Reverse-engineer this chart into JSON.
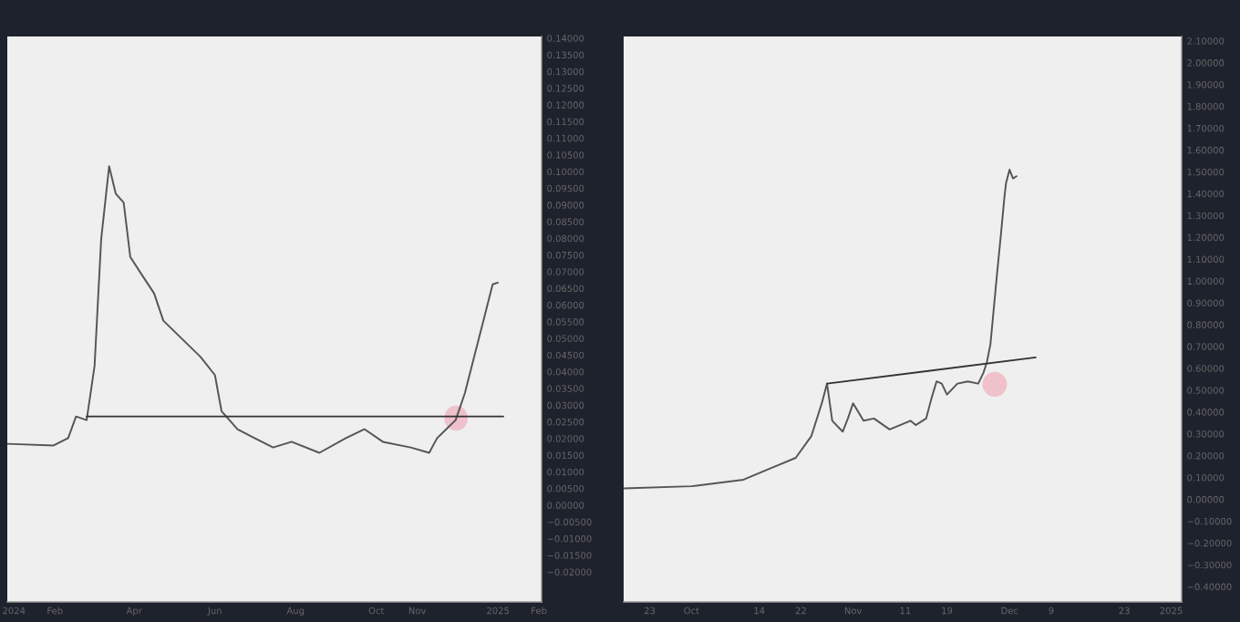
{
  "chart_data": [
    {
      "type": "line",
      "legend": false,
      "grid": false,
      "xlim": [
        "2023-12-27",
        "2025-02-03"
      ],
      "xticks": [
        {
          "value": "2024-01-01",
          "label": "2024"
        },
        {
          "value": "2024-02-01",
          "label": "Feb"
        },
        {
          "value": "2024-04-01",
          "label": "Apr"
        },
        {
          "value": "2024-06-01",
          "label": "Jun"
        },
        {
          "value": "2024-08-01",
          "label": "Aug"
        },
        {
          "value": "2024-10-01",
          "label": "Oct"
        },
        {
          "value": "2024-11-01",
          "label": "Nov"
        },
        {
          "value": "2025-01-01",
          "label": "2025"
        },
        {
          "value": "2025-02-01",
          "label": "Feb"
        }
      ],
      "ylim": [
        -0.029,
        0.1405
      ],
      "yticks": [
        {
          "value": 0.14,
          "label": "0.14000"
        },
        {
          "value": 0.135,
          "label": "0.13500"
        },
        {
          "value": 0.13,
          "label": "0.13000"
        },
        {
          "value": 0.125,
          "label": "0.12500"
        },
        {
          "value": 0.12,
          "label": "0.12000"
        },
        {
          "value": 0.115,
          "label": "0.11500"
        },
        {
          "value": 0.11,
          "label": "0.11000"
        },
        {
          "value": 0.105,
          "label": "0.10500"
        },
        {
          "value": 0.1,
          "label": "0.10000"
        },
        {
          "value": 0.095,
          "label": "0.09500"
        },
        {
          "value": 0.09,
          "label": "0.09000"
        },
        {
          "value": 0.085,
          "label": "0.08500"
        },
        {
          "value": 0.08,
          "label": "0.08000"
        },
        {
          "value": 0.075,
          "label": "0.07500"
        },
        {
          "value": 0.07,
          "label": "0.07000"
        },
        {
          "value": 0.065,
          "label": "0.06500"
        },
        {
          "value": 0.06,
          "label": "0.06000"
        },
        {
          "value": 0.055,
          "label": "0.05500"
        },
        {
          "value": 0.05,
          "label": "0.05000"
        },
        {
          "value": 0.045,
          "label": "0.04500"
        },
        {
          "value": 0.04,
          "label": "0.04000"
        },
        {
          "value": 0.035,
          "label": "0.03500"
        },
        {
          "value": 0.03,
          "label": "0.03000"
        },
        {
          "value": 0.025,
          "label": "0.02500"
        },
        {
          "value": 0.02,
          "label": "0.02000"
        },
        {
          "value": 0.015,
          "label": "0.01500"
        },
        {
          "value": 0.01,
          "label": "0.01000"
        },
        {
          "value": 0.005,
          "label": "0.00500"
        },
        {
          "value": 0,
          "label": "0.00000"
        },
        {
          "value": -0.005,
          "label": "−0.00500"
        },
        {
          "value": -0.01,
          "label": "−0.01000"
        },
        {
          "value": -0.015,
          "label": "−0.01500"
        },
        {
          "value": -0.02,
          "label": "−0.02000"
        }
      ],
      "series": [
        {
          "color": "#555555",
          "x": [
            "2023-12-27",
            "2024-01-31",
            "2024-02-11",
            "2024-02-17",
            "2024-02-25",
            "2024-03-02",
            "2024-03-07",
            "2024-03-13",
            "2024-03-18",
            "2024-03-24",
            "2024-03-29",
            "2024-04-07",
            "2024-04-16",
            "2024-04-23",
            "2024-05-07",
            "2024-05-21",
            "2024-06-01",
            "2024-06-06",
            "2024-06-18",
            "2024-07-01",
            "2024-07-15",
            "2024-07-29",
            "2024-08-19",
            "2024-09-08",
            "2024-09-22",
            "2024-10-06",
            "2024-10-27",
            "2024-11-10",
            "2024-11-16",
            "2024-11-23",
            "2024-11-30",
            "2024-12-07",
            "2024-12-14",
            "2024-12-21",
            "2024-12-28",
            "2025-01-01"
          ],
          "values": [
            0.0184,
            0.0179,
            0.0201,
            0.0266,
            0.0255,
            0.0418,
            0.0798,
            0.1016,
            0.0934,
            0.0907,
            0.0744,
            0.0689,
            0.0635,
            0.0553,
            0.0499,
            0.0445,
            0.039,
            0.0282,
            0.0228,
            0.0201,
            0.0173,
            0.019,
            0.0157,
            0.0201,
            0.0228,
            0.019,
            0.0173,
            0.0157,
            0.0201,
            0.0228,
            0.0255,
            0.0336,
            0.0445,
            0.0553,
            0.0662,
            0.0667
          ]
        },
        {
          "color": "#333333",
          "x": [
            "2024-02-25",
            "2025-01-05"
          ],
          "values": [
            0.0266,
            0.0266
          ]
        }
      ]
    },
    {
      "type": "line",
      "legend": false,
      "grid": false,
      "xlim": [
        "2024-09-18",
        "2025-01-03"
      ],
      "xticks": [
        {
          "value": "2024-09-23",
          "label": "23"
        },
        {
          "value": "2024-10-01",
          "label": "Oct"
        },
        {
          "value": "2024-10-14",
          "label": "14"
        },
        {
          "value": "2024-10-22",
          "label": "22"
        },
        {
          "value": "2024-11-01",
          "label": "Nov"
        },
        {
          "value": "2024-11-11",
          "label": "11"
        },
        {
          "value": "2024-11-19",
          "label": "19"
        },
        {
          "value": "2024-12-01",
          "label": "Dec"
        },
        {
          "value": "2024-12-09",
          "label": "9"
        },
        {
          "value": "2024-12-23",
          "label": "23"
        },
        {
          "value": "2025-01-01",
          "label": "2025"
        }
      ],
      "ylim": [
        -0.47,
        2.12
      ],
      "yticks": [
        {
          "value": 2.1,
          "label": "2.10000"
        },
        {
          "value": 2.0,
          "label": "2.00000"
        },
        {
          "value": 1.9,
          "label": "1.90000"
        },
        {
          "value": 1.8,
          "label": "1.80000"
        },
        {
          "value": 1.7,
          "label": "1.70000"
        },
        {
          "value": 1.6,
          "label": "1.60000"
        },
        {
          "value": 1.5,
          "label": "1.50000"
        },
        {
          "value": 1.4,
          "label": "1.40000"
        },
        {
          "value": 1.3,
          "label": "1.30000"
        },
        {
          "value": 1.2,
          "label": "1.20000"
        },
        {
          "value": 1.1,
          "label": "1.10000"
        },
        {
          "value": 1.0,
          "label": "1.00000"
        },
        {
          "value": 0.9,
          "label": "0.90000"
        },
        {
          "value": 0.8,
          "label": "0.80000"
        },
        {
          "value": 0.7,
          "label": "0.70000"
        },
        {
          "value": 0.6,
          "label": "0.60000"
        },
        {
          "value": 0.5,
          "label": "0.50000"
        },
        {
          "value": 0.4,
          "label": "0.40000"
        },
        {
          "value": 0.3,
          "label": "0.30000"
        },
        {
          "value": 0.2,
          "label": "0.20000"
        },
        {
          "value": 0.1,
          "label": "0.10000"
        },
        {
          "value": 0,
          "label": "0.00000"
        },
        {
          "value": -0.1,
          "label": "−0.10000"
        },
        {
          "value": -0.2,
          "label": "−0.20000"
        },
        {
          "value": -0.3,
          "label": "−0.30000"
        },
        {
          "value": -0.4,
          "label": "−0.40000"
        }
      ],
      "series": [
        {
          "color": "#555555",
          "x": [
            "2024-09-18",
            "2024-10-01",
            "2024-10-11",
            "2024-10-16",
            "2024-10-21",
            "2024-10-24",
            "2024-10-26",
            "2024-10-27",
            "2024-10-28",
            "2024-10-30",
            "2024-10-31",
            "2024-11-01",
            "2024-11-03",
            "2024-11-05",
            "2024-11-08",
            "2024-11-12",
            "2024-11-13",
            "2024-11-15",
            "2024-11-16",
            "2024-11-17",
            "2024-11-18",
            "2024-11-19",
            "2024-11-21",
            "2024-11-23",
            "2024-11-25",
            "2024-11-26",
            "2024-11-26T16:00",
            "2024-11-27T08:00",
            "2024-11-28",
            "2024-11-28T16:00",
            "2024-11-29T08:00",
            "2024-11-30",
            "2024-11-30T08:00",
            "2024-12-01",
            "2024-12-01T16:00",
            "2024-12-02T08:00"
          ],
          "values": [
            0.05,
            0.06,
            0.09,
            0.14,
            0.19,
            0.29,
            0.44,
            0.53,
            0.36,
            0.31,
            0.37,
            0.44,
            0.36,
            0.37,
            0.32,
            0.36,
            0.34,
            0.37,
            0.46,
            0.54,
            0.53,
            0.48,
            0.53,
            0.54,
            0.53,
            0.58,
            0.63,
            0.71,
            0.88,
            1.05,
            1.21,
            1.38,
            1.45,
            1.51,
            1.47,
            1.48
          ]
        },
        {
          "color": "#333333",
          "x": [
            "2024-10-27",
            "2024-12-06"
          ],
          "values": [
            0.53,
            0.65
          ]
        }
      ]
    }
  ]
}
